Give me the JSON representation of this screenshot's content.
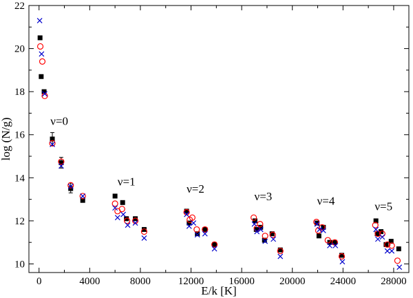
{
  "chart_data": {
    "type": "scatter",
    "title": "",
    "xlabel": "E/k [K]",
    "ylabel": "log (N/g)",
    "xlim": [
      -800,
      29200
    ],
    "ylim": [
      9.6,
      22
    ],
    "xticks": [
      0,
      4000,
      8000,
      12000,
      16000,
      20000,
      24000,
      28000
    ],
    "yticks": [
      10,
      12,
      14,
      16,
      18,
      20,
      22
    ],
    "xtick_labels": [
      "0",
      "4000",
      "8000",
      "12000",
      "16000",
      "20000",
      "24000",
      "28000"
    ],
    "ytick_labels": [
      "10",
      "12",
      "14",
      "16",
      "18",
      "20",
      "22"
    ],
    "grid": false,
    "legend": false,
    "colors": {
      "squares": "#000000",
      "circles": "#ff0000",
      "crosses": "#0000cc"
    },
    "annotations": [
      {
        "text": "ν=0",
        "x": 900,
        "y": 16.45
      },
      {
        "text": "ν=1",
        "x": 6200,
        "y": 13.65
      },
      {
        "text": "ν=2",
        "x": 11650,
        "y": 13.3
      },
      {
        "text": "ν=3",
        "x": 17000,
        "y": 12.95
      },
      {
        "text": "ν=4",
        "x": 21950,
        "y": 12.75
      },
      {
        "text": "ν=5",
        "x": 26500,
        "y": 12.5
      }
    ],
    "series": [
      {
        "name": "squares",
        "marker": "square",
        "points": [
          [
            80,
            20.5
          ],
          [
            170,
            18.7
          ],
          [
            400,
            18.0
          ],
          [
            1050,
            15.8
          ],
          [
            1750,
            14.7
          ],
          [
            2500,
            13.5
          ],
          [
            3450,
            12.95
          ],
          [
            6000,
            13.15
          ],
          [
            6600,
            12.85
          ],
          [
            6900,
            12.1
          ],
          [
            7600,
            12.1
          ],
          [
            8300,
            11.6
          ],
          [
            11650,
            12.45
          ],
          [
            11850,
            11.9
          ],
          [
            12500,
            11.4
          ],
          [
            13100,
            11.6
          ],
          [
            13850,
            10.9
          ],
          [
            17050,
            12.0
          ],
          [
            17150,
            11.6
          ],
          [
            17500,
            11.7
          ],
          [
            17800,
            11.1
          ],
          [
            18400,
            11.4
          ],
          [
            19050,
            10.65
          ],
          [
            21950,
            11.9
          ],
          [
            22100,
            11.3
          ],
          [
            22450,
            11.7
          ],
          [
            22950,
            11.0
          ],
          [
            23350,
            11.0
          ],
          [
            23900,
            10.4
          ],
          [
            26600,
            12.0
          ],
          [
            26700,
            11.4
          ],
          [
            27000,
            11.5
          ],
          [
            27400,
            10.9
          ],
          [
            27800,
            11.05
          ],
          [
            28400,
            10.7
          ]
        ]
      },
      {
        "name": "circles",
        "marker": "circle",
        "points": [
          [
            100,
            20.1
          ],
          [
            260,
            19.4
          ],
          [
            450,
            17.8
          ],
          [
            1050,
            15.6
          ],
          [
            1750,
            14.75
          ],
          [
            2500,
            13.65
          ],
          [
            3450,
            13.15
          ],
          [
            6000,
            12.8
          ],
          [
            6200,
            12.45
          ],
          [
            6550,
            12.55
          ],
          [
            6950,
            12.0
          ],
          [
            7600,
            12.0
          ],
          [
            8300,
            11.5
          ],
          [
            11650,
            12.4
          ],
          [
            11900,
            12.05
          ],
          [
            12100,
            12.15
          ],
          [
            12450,
            11.6
          ],
          [
            13100,
            11.6
          ],
          [
            13850,
            10.9
          ],
          [
            16950,
            12.15
          ],
          [
            17200,
            11.65
          ],
          [
            17450,
            11.85
          ],
          [
            17850,
            11.3
          ],
          [
            18450,
            11.35
          ],
          [
            19050,
            10.6
          ],
          [
            21900,
            11.95
          ],
          [
            22050,
            11.55
          ],
          [
            22350,
            11.7
          ],
          [
            22800,
            11.1
          ],
          [
            23350,
            11.0
          ],
          [
            23900,
            10.35
          ],
          [
            26550,
            11.8
          ],
          [
            26750,
            11.4
          ],
          [
            27100,
            11.4
          ],
          [
            27500,
            10.9
          ],
          [
            27850,
            10.85
          ],
          [
            28300,
            10.15
          ]
        ]
      },
      {
        "name": "crosses",
        "marker": "cross",
        "points": [
          [
            50,
            21.3
          ],
          [
            200,
            19.75
          ],
          [
            450,
            17.9
          ],
          [
            1050,
            15.55
          ],
          [
            1750,
            14.55
          ],
          [
            2500,
            13.6
          ],
          [
            3450,
            13.15
          ],
          [
            6000,
            12.6
          ],
          [
            6200,
            12.15
          ],
          [
            6650,
            12.3
          ],
          [
            7000,
            11.8
          ],
          [
            7600,
            11.9
          ],
          [
            8300,
            11.2
          ],
          [
            11650,
            12.3
          ],
          [
            11850,
            11.75
          ],
          [
            12200,
            11.9
          ],
          [
            12500,
            11.35
          ],
          [
            13100,
            11.4
          ],
          [
            13850,
            10.7
          ],
          [
            17000,
            11.85
          ],
          [
            17200,
            11.5
          ],
          [
            17500,
            11.6
          ],
          [
            17850,
            11.05
          ],
          [
            18500,
            11.15
          ],
          [
            19050,
            10.35
          ],
          [
            21950,
            11.85
          ],
          [
            22150,
            11.6
          ],
          [
            22450,
            11.55
          ],
          [
            22950,
            10.85
          ],
          [
            23400,
            10.85
          ],
          [
            23950,
            10.1
          ],
          [
            26600,
            11.6
          ],
          [
            26750,
            11.15
          ],
          [
            27100,
            11.25
          ],
          [
            27500,
            10.6
          ],
          [
            27850,
            10.6
          ],
          [
            28450,
            9.85
          ]
        ]
      }
    ],
    "error_bars": [
      {
        "x": 1050,
        "low": 15.5,
        "high": 16.1
      },
      {
        "x": 1750,
        "low": 14.45,
        "high": 14.95
      },
      {
        "x": 2500,
        "low": 13.3,
        "high": 13.75
      }
    ]
  }
}
